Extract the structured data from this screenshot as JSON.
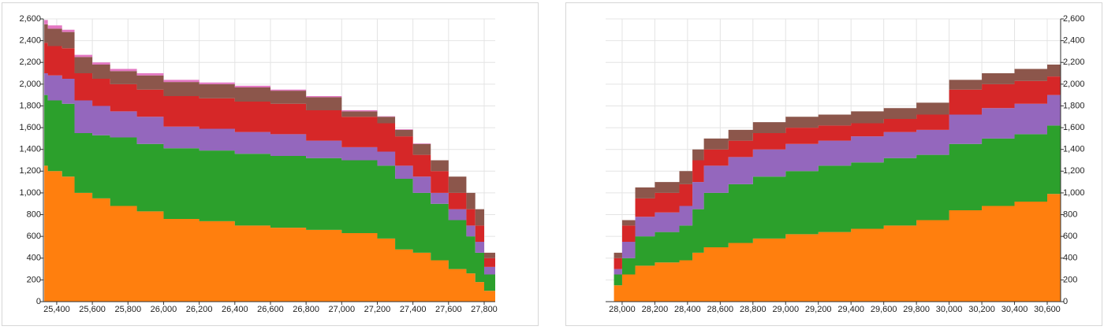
{
  "chart_data": [
    {
      "type": "area",
      "stacked": true,
      "step": true,
      "grid": true,
      "y_axis_side": "left",
      "x": [
        25330,
        25350,
        25430,
        25500,
        25600,
        25700,
        25850,
        26000,
        26200,
        26400,
        26600,
        26800,
        27000,
        27200,
        27300,
        27400,
        27500,
        27600,
        27700,
        27750,
        27800,
        27862
      ],
      "series": [
        {
          "color": "#ff7f0e",
          "values": [
            1250,
            1200,
            1150,
            1000,
            950,
            880,
            830,
            760,
            740,
            700,
            680,
            660,
            630,
            580,
            480,
            450,
            380,
            300,
            260,
            180,
            100,
            0
          ]
        },
        {
          "color": "#2ca02c",
          "values": [
            650,
            650,
            670,
            550,
            580,
            630,
            620,
            650,
            650,
            660,
            660,
            660,
            670,
            670,
            650,
            550,
            520,
            450,
            340,
            270,
            150,
            0
          ]
        },
        {
          "color": "#9467bd",
          "values": [
            200,
            230,
            230,
            300,
            270,
            240,
            250,
            200,
            200,
            200,
            200,
            160,
            120,
            130,
            120,
            150,
            100,
            100,
            100,
            100,
            70,
            0
          ]
        },
        {
          "color": "#d62728",
          "values": [
            280,
            270,
            280,
            250,
            250,
            250,
            250,
            280,
            280,
            280,
            280,
            280,
            280,
            260,
            270,
            200,
            200,
            150,
            150,
            150,
            80,
            0
          ]
        },
        {
          "color": "#8c564b",
          "values": [
            170,
            160,
            150,
            150,
            130,
            120,
            130,
            130,
            130,
            130,
            120,
            120,
            50,
            60,
            60,
            100,
            100,
            150,
            150,
            150,
            50,
            0
          ]
        },
        {
          "color": "#e377c2",
          "values": [
            40,
            30,
            20,
            20,
            20,
            20,
            20,
            20,
            15,
            15,
            10,
            10,
            10,
            5,
            5,
            5,
            0,
            0,
            0,
            0,
            0,
            0
          ]
        }
      ],
      "xlim": [
        25325,
        27862
      ],
      "xticks": [
        {
          "value": 25400,
          "label": "25,400"
        },
        {
          "value": 25600,
          "label": "25,600"
        },
        {
          "value": 25800,
          "label": "25,800"
        },
        {
          "value": 26000,
          "label": "26,000"
        },
        {
          "value": 26200,
          "label": "26,200"
        },
        {
          "value": 26400,
          "label": "26,400"
        },
        {
          "value": 26600,
          "label": "26,600"
        },
        {
          "value": 26800,
          "label": "26,800"
        },
        {
          "value": 27000,
          "label": "27,000"
        },
        {
          "value": 27200,
          "label": "27,200"
        },
        {
          "value": 27400,
          "label": "27,400"
        },
        {
          "value": 27600,
          "label": "27,600"
        },
        {
          "value": 27800,
          "label": "27,800"
        }
      ],
      "ylim": [
        0,
        2600
      ],
      "yticks": [
        0,
        200,
        400,
        600,
        800,
        {
          "value": 1000,
          "label": "1,000"
        },
        {
          "value": 1200,
          "label": "1,200"
        },
        {
          "value": 1400,
          "label": "1,400"
        },
        {
          "value": 1600,
          "label": "1,600"
        },
        {
          "value": 1800,
          "label": "1,800"
        },
        {
          "value": 2000,
          "label": "2,000"
        },
        {
          "value": 2200,
          "label": "2,200"
        },
        {
          "value": 2400,
          "label": "2,400"
        },
        {
          "value": 2600,
          "label": "2,600"
        }
      ]
    },
    {
      "type": "area",
      "stacked": true,
      "step": true,
      "grid": true,
      "y_axis_side": "right",
      "x": [
        27899,
        27950,
        28000,
        28080,
        28200,
        28350,
        28430,
        28500,
        28650,
        28800,
        29000,
        29200,
        29400,
        29600,
        29800,
        30000,
        30200,
        30400,
        30600
      ],
      "series": [
        {
          "color": "#ff7f0e",
          "values": [
            0,
            150,
            250,
            330,
            360,
            380,
            450,
            500,
            540,
            580,
            620,
            640,
            670,
            700,
            750,
            840,
            880,
            920,
            990
          ]
        },
        {
          "color": "#2ca02c",
          "values": [
            0,
            100,
            150,
            270,
            280,
            320,
            400,
            500,
            540,
            570,
            580,
            610,
            610,
            620,
            600,
            610,
            620,
            620,
            630
          ]
        },
        {
          "color": "#9467bd",
          "values": [
            0,
            50,
            150,
            180,
            180,
            180,
            250,
            250,
            250,
            250,
            250,
            230,
            240,
            240,
            230,
            270,
            280,
            280,
            280
          ]
        },
        {
          "color": "#d62728",
          "values": [
            0,
            100,
            150,
            170,
            180,
            200,
            200,
            150,
            150,
            150,
            150,
            140,
            120,
            120,
            140,
            230,
            220,
            210,
            170
          ]
        },
        {
          "color": "#8c564b",
          "values": [
            0,
            50,
            50,
            100,
            100,
            120,
            100,
            100,
            100,
            100,
            100,
            100,
            110,
            100,
            110,
            90,
            100,
            110,
            110
          ]
        }
      ],
      "xlim": [
        27899,
        30682
      ],
      "xticks": [
        {
          "value": 28000,
          "label": "28,000"
        },
        {
          "value": 28200,
          "label": "28,200"
        },
        {
          "value": 28400,
          "label": "28,400"
        },
        {
          "value": 28600,
          "label": "28,600"
        },
        {
          "value": 28800,
          "label": "28,800"
        },
        {
          "value": 29000,
          "label": "29,000"
        },
        {
          "value": 29200,
          "label": "29,200"
        },
        {
          "value": 29400,
          "label": "29,400"
        },
        {
          "value": 29600,
          "label": "29,600"
        },
        {
          "value": 29800,
          "label": "29,800"
        },
        {
          "value": 30000,
          "label": "30,000"
        },
        {
          "value": 30200,
          "label": "30,200"
        },
        {
          "value": 30400,
          "label": "30,400"
        },
        {
          "value": 30600,
          "label": "30,600"
        }
      ],
      "ylim": [
        0,
        2600
      ],
      "yticks": [
        0,
        200,
        400,
        600,
        800,
        {
          "value": 1000,
          "label": "1,000"
        },
        {
          "value": 1200,
          "label": "1,200"
        },
        {
          "value": 1400,
          "label": "1,400"
        },
        {
          "value": 1600,
          "label": "1,600"
        },
        {
          "value": 1800,
          "label": "1,800"
        },
        {
          "value": 2000,
          "label": "2,000"
        },
        {
          "value": 2200,
          "label": "2,200"
        },
        {
          "value": 2400,
          "label": "2,400"
        },
        {
          "value": 2600,
          "label": "2,600"
        }
      ]
    }
  ]
}
